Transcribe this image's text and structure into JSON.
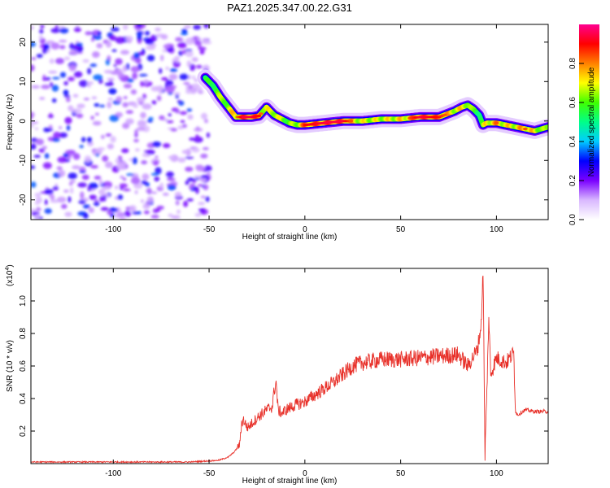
{
  "title": "PAZ1.2025.347.00.22.G31",
  "chart_data": [
    {
      "type": "heatmap",
      "name": "spectrogram",
      "xlabel": "Height of straight line (km)",
      "ylabel": "Frequency (Hz)",
      "xlim": [
        -143,
        127
      ],
      "ylim": [
        -25,
        24.5
      ],
      "xticks": [
        -100,
        -50,
        0,
        50,
        100
      ],
      "yticks": [
        -20,
        -10,
        0,
        10,
        20
      ],
      "colorbar": {
        "label": "Normalized spectral amplitude",
        "range": [
          0,
          1
        ],
        "ticks": [
          "0.0",
          "0.2",
          "0.4",
          "0.6",
          "0.8"
        ],
        "colors": [
          "#ffffff",
          "#d9b8ff",
          "#7a00ff",
          "#0000ff",
          "#00ccff",
          "#00ff88",
          "#40ff00",
          "#ffff00",
          "#ff8000",
          "#ff0000",
          "#ff0090"
        ]
      },
      "ridge": {
        "x": [
          -52,
          -48,
          -44,
          -40,
          -36,
          -32,
          -28,
          -24,
          -20,
          -16,
          -12,
          -8,
          -4,
          0,
          10,
          20,
          30,
          40,
          50,
          60,
          70,
          78,
          82,
          85,
          88,
          91,
          93,
          95,
          100,
          105,
          110,
          115,
          120,
          127
        ],
        "freq": [
          11,
          9,
          6,
          3.5,
          1,
          1,
          1,
          1.3,
          3.5,
          1.5,
          0.5,
          -0.5,
          -1,
          -1,
          -0.5,
          0,
          0,
          0.5,
          0.5,
          1,
          1,
          2.5,
          3.5,
          4,
          3,
          1.5,
          -1,
          -0.5,
          -0.5,
          -1,
          -1.5,
          -2,
          -2.5,
          -1.5
        ],
        "amplitude": [
          0.35,
          0.45,
          0.55,
          0.6,
          0.75,
          0.9,
          0.9,
          0.85,
          0.6,
          0.7,
          0.6,
          0.5,
          0.6,
          0.85,
          0.9,
          0.9,
          0.65,
          0.65,
          0.7,
          0.9,
          0.85,
          0.7,
          0.7,
          0.7,
          0.5,
          0.4,
          0.5,
          0.7,
          0.8,
          0.7,
          0.7,
          0.8,
          0.7,
          0.5
        ]
      },
      "noise_region_km": [
        -143,
        -50
      ]
    },
    {
      "type": "line",
      "name": "snr",
      "xlabel": "Height of straight line (km)",
      "ylabel": "SNR (10 * v/v)",
      "scale_label": "(x10",
      "scale_exponent": "4",
      "xlim": [
        -143,
        127
      ],
      "ylim": [
        0,
        1.2
      ],
      "xticks": [
        -100,
        -50,
        0,
        50,
        100
      ],
      "yticks": [
        "0.2",
        "0.4",
        "0.6",
        "0.8",
        "1.0"
      ],
      "series": [
        {
          "name": "SNR",
          "color": "#e8312a",
          "x": [
            -143,
            -100,
            -60,
            -45,
            -40,
            -37,
            -35,
            -34,
            -33,
            -32,
            -30,
            -25,
            -20,
            -17,
            -16,
            -15,
            -14,
            -12,
            -10,
            -5,
            0,
            5,
            10,
            15,
            20,
            25,
            30,
            40,
            50,
            60,
            70,
            80,
            85,
            90,
            92,
            93,
            94,
            95,
            96,
            97,
            100,
            105,
            109,
            110,
            111,
            115,
            120,
            127
          ],
          "values": [
            0.01,
            0.01,
            0.01,
            0.02,
            0.04,
            0.07,
            0.1,
            0.12,
            0.25,
            0.27,
            0.22,
            0.28,
            0.33,
            0.35,
            0.45,
            0.5,
            0.33,
            0.31,
            0.33,
            0.36,
            0.38,
            0.42,
            0.46,
            0.5,
            0.55,
            0.6,
            0.62,
            0.64,
            0.64,
            0.65,
            0.66,
            0.67,
            0.6,
            0.7,
            0.85,
            1.2,
            0.05,
            0.45,
            0.9,
            0.55,
            0.65,
            0.62,
            0.68,
            0.32,
            0.3,
            0.33,
            0.32,
            0.32
          ]
        }
      ]
    }
  ]
}
